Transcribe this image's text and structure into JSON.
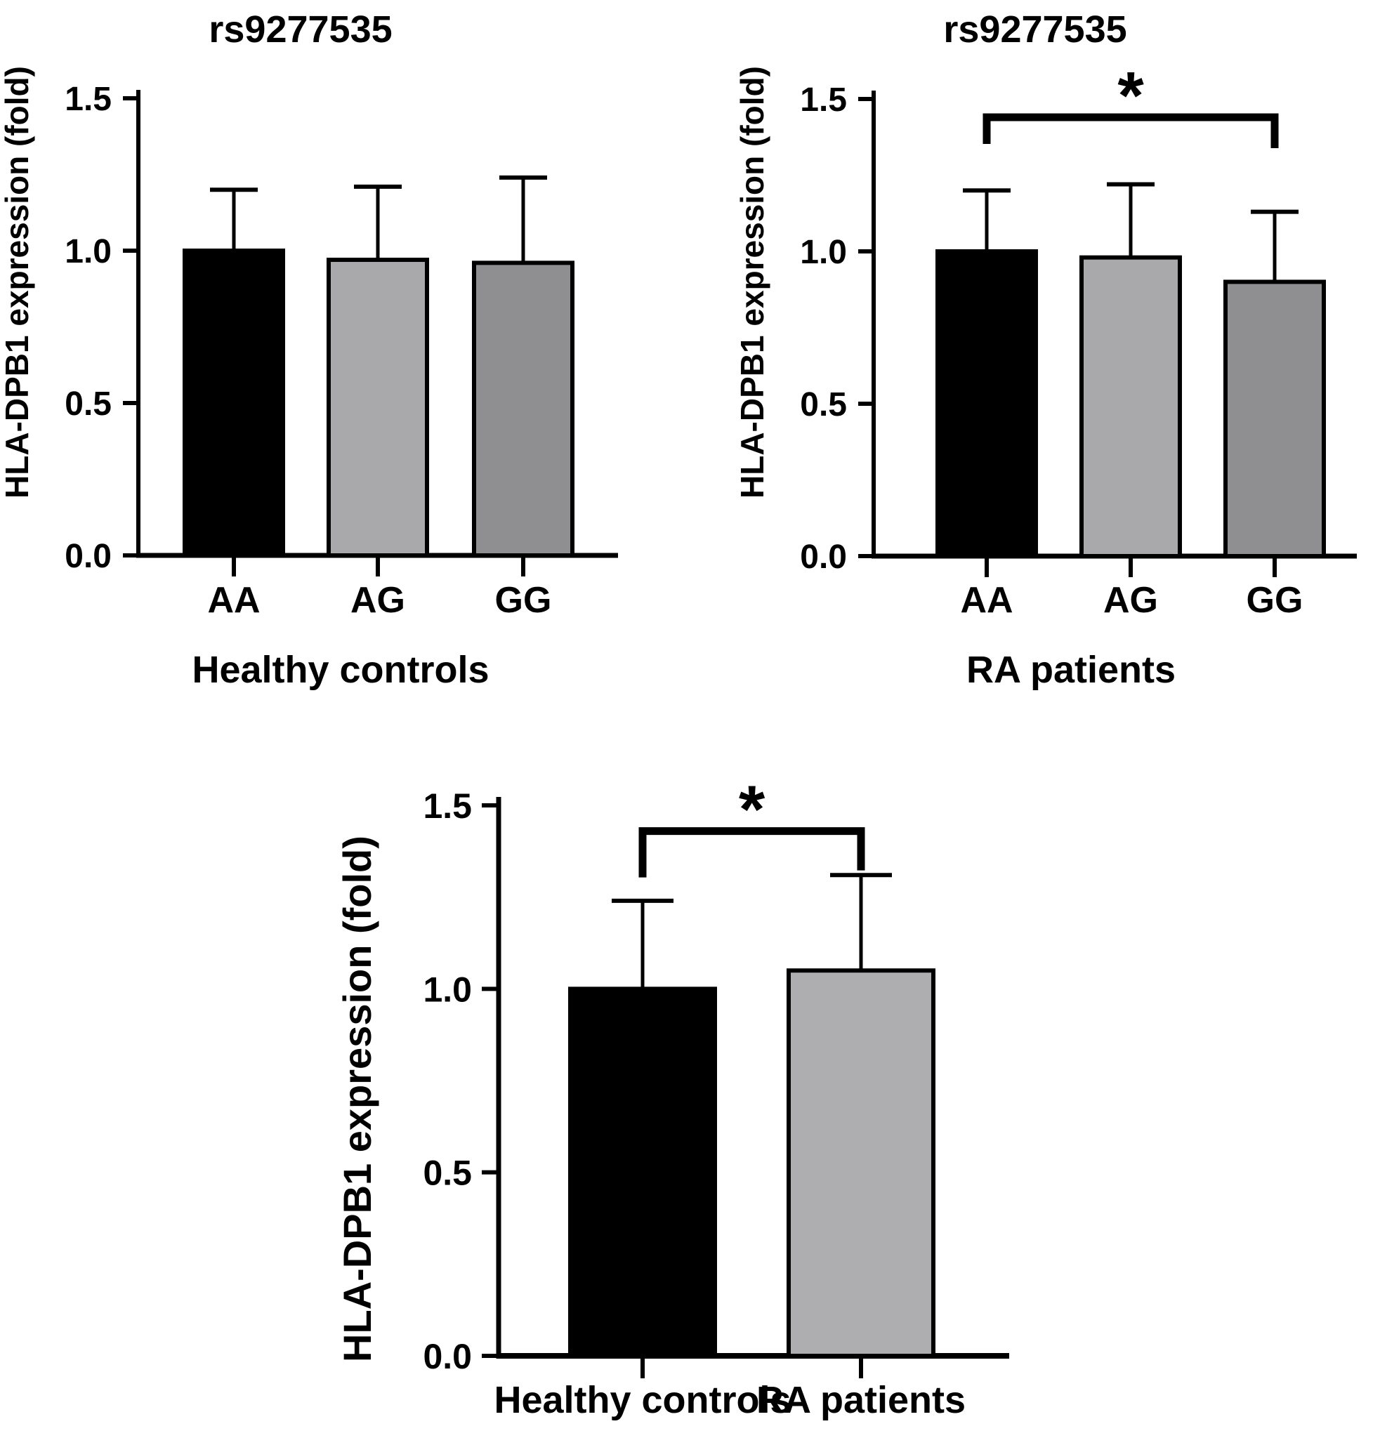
{
  "figure_background": "#ffffff",
  "chart_data": [
    {
      "type": "bar",
      "title": "rs9277535",
      "ylabel": "HLA-DPB1 expression (fold)",
      "xlabel": "Healthy controls",
      "categories": [
        "AA",
        "AG",
        "GG"
      ],
      "values": [
        1.0,
        0.97,
        0.96
      ],
      "sd_upper": [
        0.2,
        0.24,
        0.28
      ],
      "bar_colors": [
        "#000000",
        "#a9a8ab",
        "#8f8e90"
      ],
      "ylim": [
        0,
        1.5
      ],
      "yticks": [
        "0.0",
        "0.5",
        "1.0",
        "1.5"
      ],
      "grid": "off",
      "legend": "none",
      "significance": null
    },
    {
      "type": "bar",
      "title": "rs9277535",
      "ylabel": "HLA-DPB1 expression (fold)",
      "xlabel": "RA patients",
      "categories": [
        "AA",
        "AG",
        "GG"
      ],
      "values": [
        1.0,
        0.98,
        0.9
      ],
      "sd_upper": [
        0.2,
        0.24,
        0.23
      ],
      "bar_colors": [
        "#000000",
        "#a9a8ab",
        "#8f8e90"
      ],
      "ylim": [
        0,
        1.5
      ],
      "yticks": [
        "0.0",
        "0.5",
        "1.0",
        "1.5"
      ],
      "grid": "off",
      "legend": "none",
      "significance": {
        "from": 0,
        "to": 2,
        "label": "*",
        "bar_y": 1.44
      }
    },
    {
      "type": "bar",
      "title": "",
      "ylabel": "HLA-DPB1 expression (fold)",
      "xlabel": "",
      "categories": [
        "Healthy controls",
        "RA patients"
      ],
      "values": [
        1.0,
        1.05
      ],
      "sd_upper": [
        0.24,
        0.26
      ],
      "bar_colors": [
        "#000000",
        "#aeadb0"
      ],
      "ylim": [
        0,
        1.5
      ],
      "yticks": [
        "0.0",
        "0.5",
        "1.0",
        "1.5"
      ],
      "grid": "off",
      "legend": "none",
      "significance": {
        "from": 0,
        "to": 1,
        "label": "*",
        "bar_y": 1.43
      }
    }
  ]
}
